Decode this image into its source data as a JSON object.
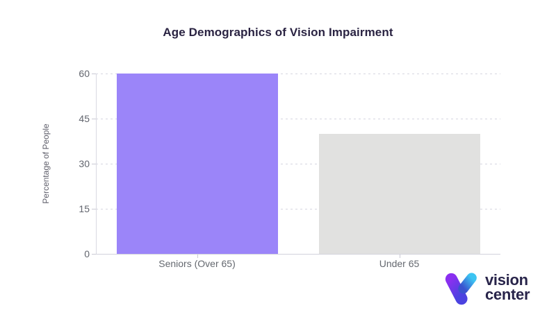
{
  "chart_data": {
    "type": "bar",
    "title": "Age Demographics of Vision Impairment",
    "xlabel": "",
    "ylabel": "Percentage of People",
    "categories": [
      "Seniors (Over 65)",
      "Under 65"
    ],
    "values": [
      60,
      40
    ],
    "bar_colors": [
      "#9b85f9",
      "#e1e1e0"
    ],
    "yticks": [
      0,
      15,
      30,
      45,
      60
    ],
    "ylim": [
      0,
      60
    ],
    "grid": "horizontal-dashed",
    "legend": "none"
  },
  "logo": {
    "line1": "vision",
    "line2": "center",
    "mark": "v-gradient-mark",
    "colors": {
      "text": "#28244a",
      "violet": "#8a2ff0",
      "indigo": "#4b42e0",
      "cyan": "#3cc4f2",
      "blue": "#3a53cf"
    }
  },
  "colors": {
    "background": "#ffffff",
    "title_text": "#2a2342",
    "axis_line": "#d9d9e2",
    "grid_line": "#d5d5e0",
    "tick_text": "#62656e",
    "category_text": "#64686f"
  }
}
